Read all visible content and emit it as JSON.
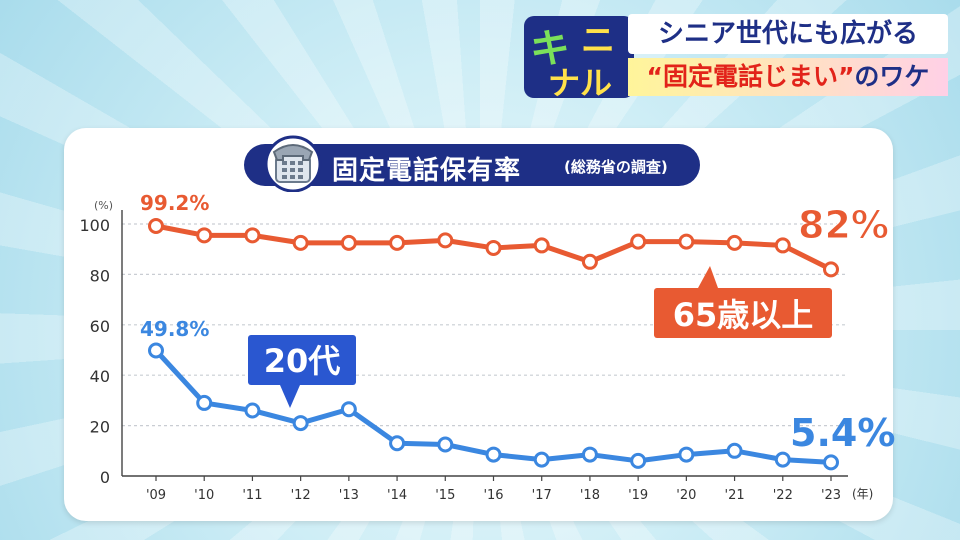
{
  "header": {
    "brand_top": "キ",
    "brand_mid": "ニ",
    "brand_bottom": "ナル",
    "headline_line1": "シニア世代にも広がる",
    "headline_line2_quoted": "“固定電話じまい”",
    "headline_line2_rest": "のワケ"
  },
  "card": {
    "title": "固定電話保有率",
    "source_note": "(総務省の調査)"
  },
  "colors": {
    "orange": "#e85a32",
    "blue": "#3b87e0",
    "navy": "#1e2f86"
  },
  "chart_data": {
    "type": "line",
    "title": "固定電話保有率",
    "subtitle": "(総務省の調査)",
    "y_unit": "(%)",
    "x_unit": "(年)",
    "categories": [
      "'09",
      "'10",
      "'11",
      "'12",
      "'13",
      "'14",
      "'15",
      "'16",
      "'17",
      "'18",
      "'19",
      "'20",
      "'21",
      "'22",
      "'23"
    ],
    "ylim": [
      0,
      100
    ],
    "yticks": [
      0,
      20,
      40,
      60,
      80,
      100
    ],
    "grid": true,
    "series": [
      {
        "name": "65歳以上",
        "color": "#e85a32",
        "values": [
          99.2,
          95.5,
          95.5,
          92.5,
          92.5,
          92.5,
          93.5,
          90.5,
          91.5,
          85.0,
          93.0,
          93.0,
          92.5,
          91.5,
          82.0
        ],
        "start_label": "99.2%",
        "end_label": "82%"
      },
      {
        "name": "20代",
        "color": "#3b87e0",
        "values": [
          49.8,
          29.0,
          26.0,
          21.0,
          26.5,
          13.0,
          12.5,
          8.5,
          6.5,
          8.5,
          6.0,
          8.5,
          10.0,
          6.5,
          5.4
        ],
        "start_label": "49.8%",
        "end_label": "5.4%"
      }
    ]
  }
}
